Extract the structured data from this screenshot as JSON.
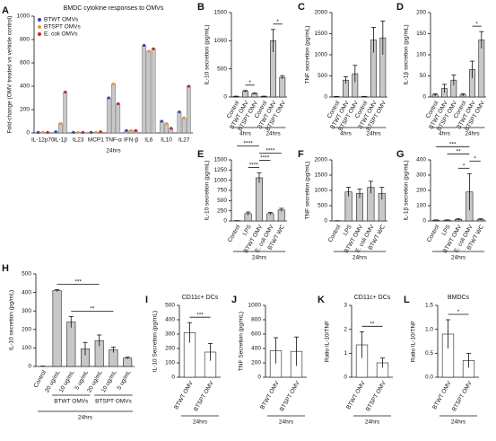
{
  "chart_data": [
    {
      "type": "bar",
      "panel": "A",
      "title": "BMDC cytokine responses to OMVs",
      "ylabel": "Fold-change (OMV treated vs vehicle control)",
      "xlabel": "24hrs",
      "categories": [
        "IL-12p70",
        "IL-1β",
        "IL23",
        "MCP1",
        "TNF-α",
        "IFN-β",
        "IL6",
        "IL10",
        "IL27"
      ],
      "series": [
        {
          "name": "BTWT OMVs",
          "color": "#3347a8",
          "values": [
            5,
            10,
            5,
            5,
            300,
            20,
            750,
            100,
            180
          ]
        },
        {
          "name": "BTSPT OMVs",
          "color": "#e89a2c",
          "values": [
            5,
            80,
            5,
            5,
            420,
            20,
            700,
            80,
            130
          ]
        },
        {
          "name": "E. coli OMVs",
          "color": "#c0282d",
          "values": [
            5,
            350,
            5,
            10,
            250,
            20,
            720,
            40,
            400
          ]
        }
      ],
      "ylim": [
        0,
        1000
      ],
      "yticks": [
        0,
        200,
        400,
        600,
        800,
        1000
      ],
      "bar_color": "#c8c8c8"
    },
    {
      "type": "bar",
      "panel": "B",
      "ylabel": "IL-10 secretion (pg/mL)",
      "categories": [
        "Control",
        "BTWT OMV",
        "BTSPT OMV",
        "Control",
        "BTWT OMV",
        "BTSPT OMV"
      ],
      "values": [
        10,
        100,
        60,
        10,
        1000,
        350
      ],
      "errors": [
        5,
        15,
        10,
        5,
        200,
        30
      ],
      "ylim": [
        0,
        1500
      ],
      "yticks": [
        0,
        500,
        1000,
        1500
      ],
      "bar_color": "#c8c8c8",
      "groups": [
        {
          "label": "4hrs",
          "from": 0,
          "to": 2
        },
        {
          "label": "24hrs",
          "from": 3,
          "to": 5
        }
      ],
      "annotations": [
        {
          "label": "*",
          "from": 1,
          "to": 2
        },
        {
          "label": "*",
          "from": 4,
          "to": 5
        }
      ]
    },
    {
      "type": "bar",
      "panel": "C",
      "ylabel": "TNF secretion (pg/mL)",
      "categories": [
        "Control",
        "BTWT OMV",
        "BTSPT OMV",
        "Control",
        "BTWT OMV",
        "BTSPT OMV"
      ],
      "values": [
        10,
        400,
        550,
        10,
        1350,
        1400
      ],
      "errors": [
        5,
        80,
        200,
        5,
        300,
        400
      ],
      "ylim": [
        0,
        2000
      ],
      "yticks": [
        0,
        500,
        1000,
        1500,
        2000
      ],
      "bar_color": "#c8c8c8",
      "groups": [
        {
          "label": "4hrs",
          "from": 0,
          "to": 2
        },
        {
          "label": "24hrs",
          "from": 3,
          "to": 5
        }
      ]
    },
    {
      "type": "bar",
      "panel": "D",
      "ylabel": "IL-1β secretion (pg/mL)",
      "categories": [
        "Control",
        "BTWT OMV",
        "BTSPT OMV",
        "Control",
        "BTWT OMV",
        "BTSPT OMV"
      ],
      "values": [
        5,
        20,
        40,
        5,
        65,
        135
      ],
      "errors": [
        3,
        10,
        12,
        3,
        20,
        20
      ],
      "ylim": [
        0,
        200
      ],
      "yticks": [
        0,
        50,
        100,
        150,
        200
      ],
      "bar_color": "#c8c8c8",
      "groups": [
        {
          "label": "4hrs",
          "from": 0,
          "to": 2
        },
        {
          "label": "24hrs",
          "from": 3,
          "to": 5
        }
      ],
      "annotations": [
        {
          "label": "*",
          "from": 4,
          "to": 5
        }
      ]
    },
    {
      "type": "bar",
      "panel": "E",
      "ylabel": "IL-10 secretion (pg/mL)",
      "categories": [
        "Control",
        "LPS",
        "BTWT OMV",
        "E. coli OMV",
        "BTWT WC"
      ],
      "values": [
        5,
        180,
        1060,
        180,
        270
      ],
      "errors": [
        3,
        40,
        120,
        30,
        40
      ],
      "ylim": [
        0,
        1500
      ],
      "yticks": [
        0,
        250,
        500,
        750,
        1000,
        1250,
        1500
      ],
      "bar_color": "#c8c8c8",
      "groups": [
        {
          "label": "24hrs",
          "from": 0,
          "to": 4
        }
      ],
      "annotations": [
        {
          "label": "****",
          "from": 1,
          "to": 2
        },
        {
          "label": "****",
          "from": 2,
          "to": 3
        },
        {
          "label": "****",
          "from": 2,
          "to": 4
        },
        {
          "label": "****",
          "from": 0,
          "to": 2
        }
      ]
    },
    {
      "type": "bar",
      "panel": "F",
      "ylabel": "TNF secretion (pg/mL)",
      "categories": [
        "Control",
        "LPS",
        "BTWT OMV",
        "E. coli OMV",
        "BTWT WC"
      ],
      "values": [
        5,
        950,
        900,
        1100,
        900
      ],
      "errors": [
        3,
        150,
        150,
        200,
        200
      ],
      "ylim": [
        0,
        2000
      ],
      "yticks": [
        0,
        500,
        1000,
        1500,
        2000
      ],
      "bar_color": "#c8c8c8",
      "groups": [
        {
          "label": "24hrs",
          "from": 0,
          "to": 4
        }
      ]
    },
    {
      "type": "bar",
      "panel": "G",
      "ylabel": "IL-1β secretion (pg/mL)",
      "categories": [
        "Control",
        "LPS",
        "BTWT OMV",
        "E. coli OMV",
        "BTWT WC"
      ],
      "values": [
        5,
        5,
        10,
        190,
        10
      ],
      "errors": [
        2,
        2,
        4,
        120,
        4
      ],
      "ylim": [
        0,
        400
      ],
      "yticks": [
        0,
        100,
        200,
        300,
        400
      ],
      "bar_color": "#c8c8c8",
      "groups": [
        {
          "label": "24hrs",
          "from": 0,
          "to": 4
        }
      ],
      "annotations": [
        {
          "label": "*",
          "from": 2,
          "to": 3
        },
        {
          "label": "*",
          "from": 3,
          "to": 4
        },
        {
          "label": "**",
          "from": 1,
          "to": 3
        },
        {
          "label": "***",
          "from": 0,
          "to": 3
        }
      ]
    },
    {
      "type": "bar",
      "panel": "H",
      "ylabel": "IL-10 secretion (pg/mL)",
      "xlabel": "24hrs",
      "categories": [
        "Control",
        "20 ug/mL",
        "10 ug/mL",
        "5 ug/mL",
        "20 ug/mL",
        "10 ug/mL",
        "5 ug/mL"
      ],
      "values": [
        0,
        410,
        240,
        95,
        140,
        90,
        45
      ],
      "errors": [
        2,
        5,
        30,
        35,
        30,
        15,
        5
      ],
      "ylim": [
        0,
        500
      ],
      "yticks": [
        0,
        100,
        200,
        300,
        400,
        500
      ],
      "bar_color": "#c8c8c8",
      "groups": [
        {
          "label": "BTWT OMVs",
          "from": 1,
          "to": 3
        },
        {
          "label": "BTSPT OMVs",
          "from": 4,
          "to": 6
        }
      ],
      "annotations": [
        {
          "label": "**",
          "from": 2,
          "to": 5
        },
        {
          "label": "***",
          "from": 1,
          "to": 4
        }
      ]
    },
    {
      "type": "bar",
      "panel": "I",
      "title": "CD11c+ DCs",
      "ylabel": "IL-10 Secretion (pg/mL)",
      "xlabel": "24hrs",
      "categories": [
        "BTWT OMV",
        "BTSPT OMV"
      ],
      "values": [
        310,
        175
      ],
      "errors": [
        70,
        60
      ],
      "ylim": [
        0,
        500
      ],
      "yticks": [
        0,
        100,
        200,
        300,
        400,
        500
      ],
      "bar_color": "#ffffff",
      "annotations": [
        {
          "label": "***",
          "from": 0,
          "to": 1
        }
      ]
    },
    {
      "type": "bar",
      "panel": "J",
      "ylabel": "TNF Secretion (pg/mL)",
      "xlabel": "24hrs",
      "categories": [
        "BTWT OMV",
        "BTSPT OMV"
      ],
      "values": [
        370,
        360
      ],
      "errors": [
        180,
        200
      ],
      "ylim": [
        0,
        1000
      ],
      "yticks": [
        0,
        200,
        400,
        600,
        800,
        1000
      ],
      "bar_color": "#ffffff"
    },
    {
      "type": "bar",
      "panel": "K",
      "title": "CD11c+ DCs",
      "ylabel": "Ratio IL-10/TNF",
      "xlabel": "24hrs",
      "categories": [
        "BTWT OMV",
        "BTSPT OMV"
      ],
      "values": [
        1.35,
        0.6
      ],
      "errors": [
        0.55,
        0.2
      ],
      "ylim": [
        0,
        3
      ],
      "yticks": [
        0,
        1,
        2,
        3
      ],
      "bar_color": "#ffffff",
      "annotations": [
        {
          "label": "**",
          "from": 0,
          "to": 1
        }
      ]
    },
    {
      "type": "bar",
      "panel": "L",
      "title": "BMDCs",
      "ylabel": "Ratio IL-10/TNF",
      "xlabel": "24hrs",
      "categories": [
        "BTWT OMV",
        "BTSPT OMV"
      ],
      "values": [
        0.9,
        0.35
      ],
      "errors": [
        0.3,
        0.15
      ],
      "ylim": [
        0,
        1.5
      ],
      "yticks": [
        {
          "value": 0,
          "label": "0.0"
        },
        {
          "value": 0.5,
          "label": "0.5"
        },
        {
          "value": 1,
          "label": "1.0"
        },
        {
          "value": 1.5,
          "label": "1.5"
        }
      ],
      "bar_color": "#ffffff",
      "annotations": [
        {
          "label": "*",
          "from": 0,
          "to": 1
        }
      ]
    }
  ]
}
